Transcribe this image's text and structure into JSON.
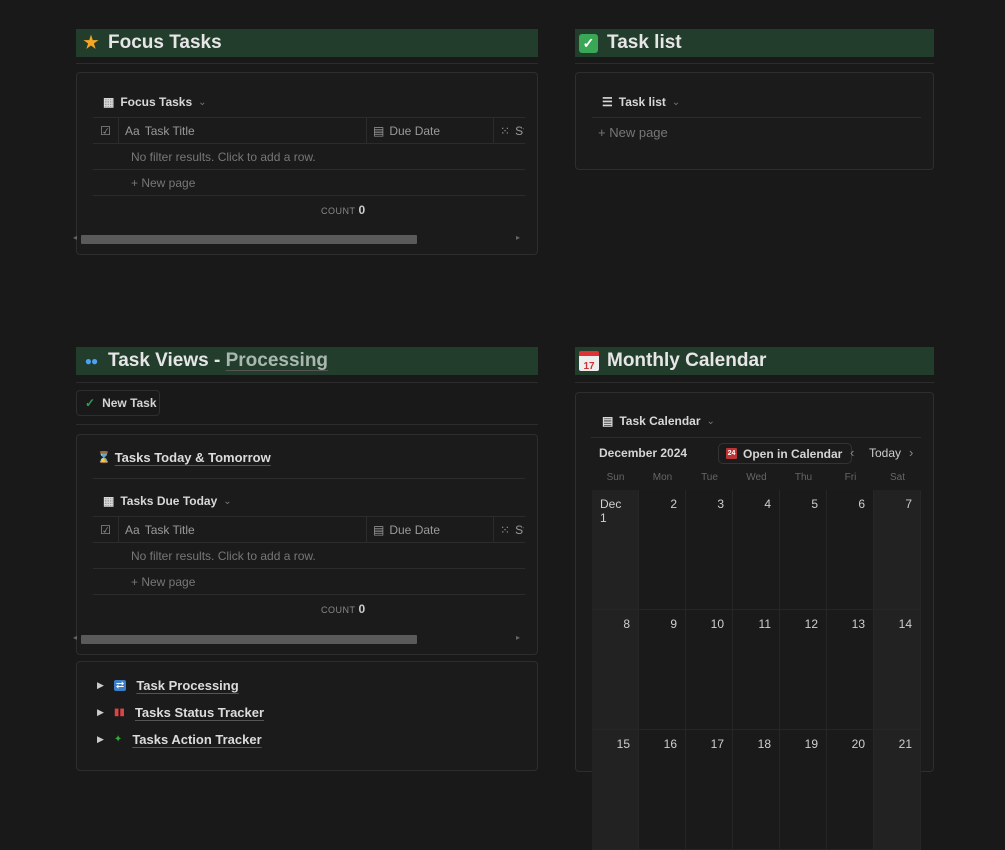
{
  "focus": {
    "title": "Focus Tasks",
    "icon": "star-icon",
    "view": "Focus Tasks",
    "cols": [
      "Task Title",
      "Due Date",
      "St"
    ],
    "empty": "No filter results. Click to add a row.",
    "new_page": "New page",
    "count_label": "COUNT",
    "count": "0"
  },
  "tasklist": {
    "title": "Task list",
    "icon": "check-box-icon",
    "view": "Task list",
    "new_page": "New page"
  },
  "views": {
    "title": "Task Views - ",
    "title_link": "Processing",
    "new_task": "New Task",
    "linked": "Tasks Today & Tomorrow",
    "view": "Tasks Due Today",
    "cols": [
      "Task Title",
      "Due Date",
      "St"
    ],
    "empty": "No filter results. Click to add a row.",
    "new_page": "New page",
    "count_label": "COUNT",
    "count": "0",
    "toggles": [
      {
        "label": "Task Processing"
      },
      {
        "label": "Tasks Status Tracker"
      },
      {
        "label": "Tasks Action Tracker"
      }
    ]
  },
  "calendar": {
    "title": "Monthly Calendar",
    "view": "Task Calendar",
    "month": "December 2024",
    "open": "Open in Calendar",
    "today": "Today",
    "dow": [
      "Sun",
      "Mon",
      "Tue",
      "Wed",
      "Thu",
      "Fri",
      "Sat"
    ],
    "weeks": [
      [
        "Dec 1",
        "2",
        "3",
        "4",
        "5",
        "6",
        "7"
      ],
      [
        "8",
        "9",
        "10",
        "11",
        "12",
        "13",
        "14"
      ],
      [
        "15",
        "16",
        "17",
        "18",
        "19",
        "20",
        "21"
      ]
    ]
  },
  "colors": {
    "header_bg": "#233d2d",
    "accent_green": "#2f9e5a"
  }
}
